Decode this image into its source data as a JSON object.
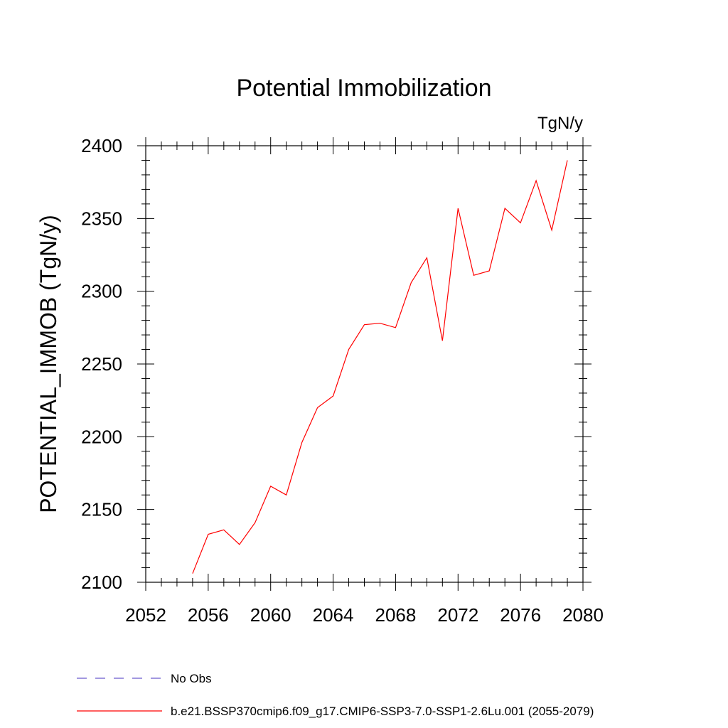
{
  "chart_data": {
    "type": "line",
    "title": "Potential Immobilization",
    "units_label": "TgN/y",
    "ylabel": "POTENTIAL_IMMOB  (TgN/y)",
    "xlabel": "",
    "xlim": [
      2052,
      2080
    ],
    "ylim": [
      2100,
      2400
    ],
    "x_ticks": [
      2052,
      2056,
      2060,
      2064,
      2068,
      2072,
      2076,
      2080
    ],
    "y_ticks": [
      2100,
      2150,
      2200,
      2250,
      2300,
      2350,
      2400
    ],
    "grid": false,
    "legend_placement": "bottom",
    "series": [
      {
        "name": "No Obs",
        "color": "#6a5acd",
        "dash": "dashed",
        "x": [],
        "y": []
      },
      {
        "name": "b.e21.BSSP370cmip6.f09_g17.CMIP6-SSP3-7.0-SSP1-2.6Lu.001 (2055-2079)",
        "color": "#ff0000",
        "dash": "solid",
        "x": [
          2055,
          2056,
          2057,
          2058,
          2059,
          2060,
          2061,
          2062,
          2063,
          2064,
          2065,
          2066,
          2067,
          2068,
          2069,
          2070,
          2071,
          2072,
          2073,
          2074,
          2075,
          2076,
          2077,
          2078,
          2079
        ],
        "y": [
          2106,
          2133,
          2136,
          2126,
          2141,
          2166,
          2160,
          2196,
          2220,
          2228,
          2260,
          2277,
          2278,
          2275,
          2306,
          2323,
          2266,
          2357,
          2311,
          2314,
          2357,
          2347,
          2376,
          2342,
          2390
        ]
      }
    ]
  }
}
